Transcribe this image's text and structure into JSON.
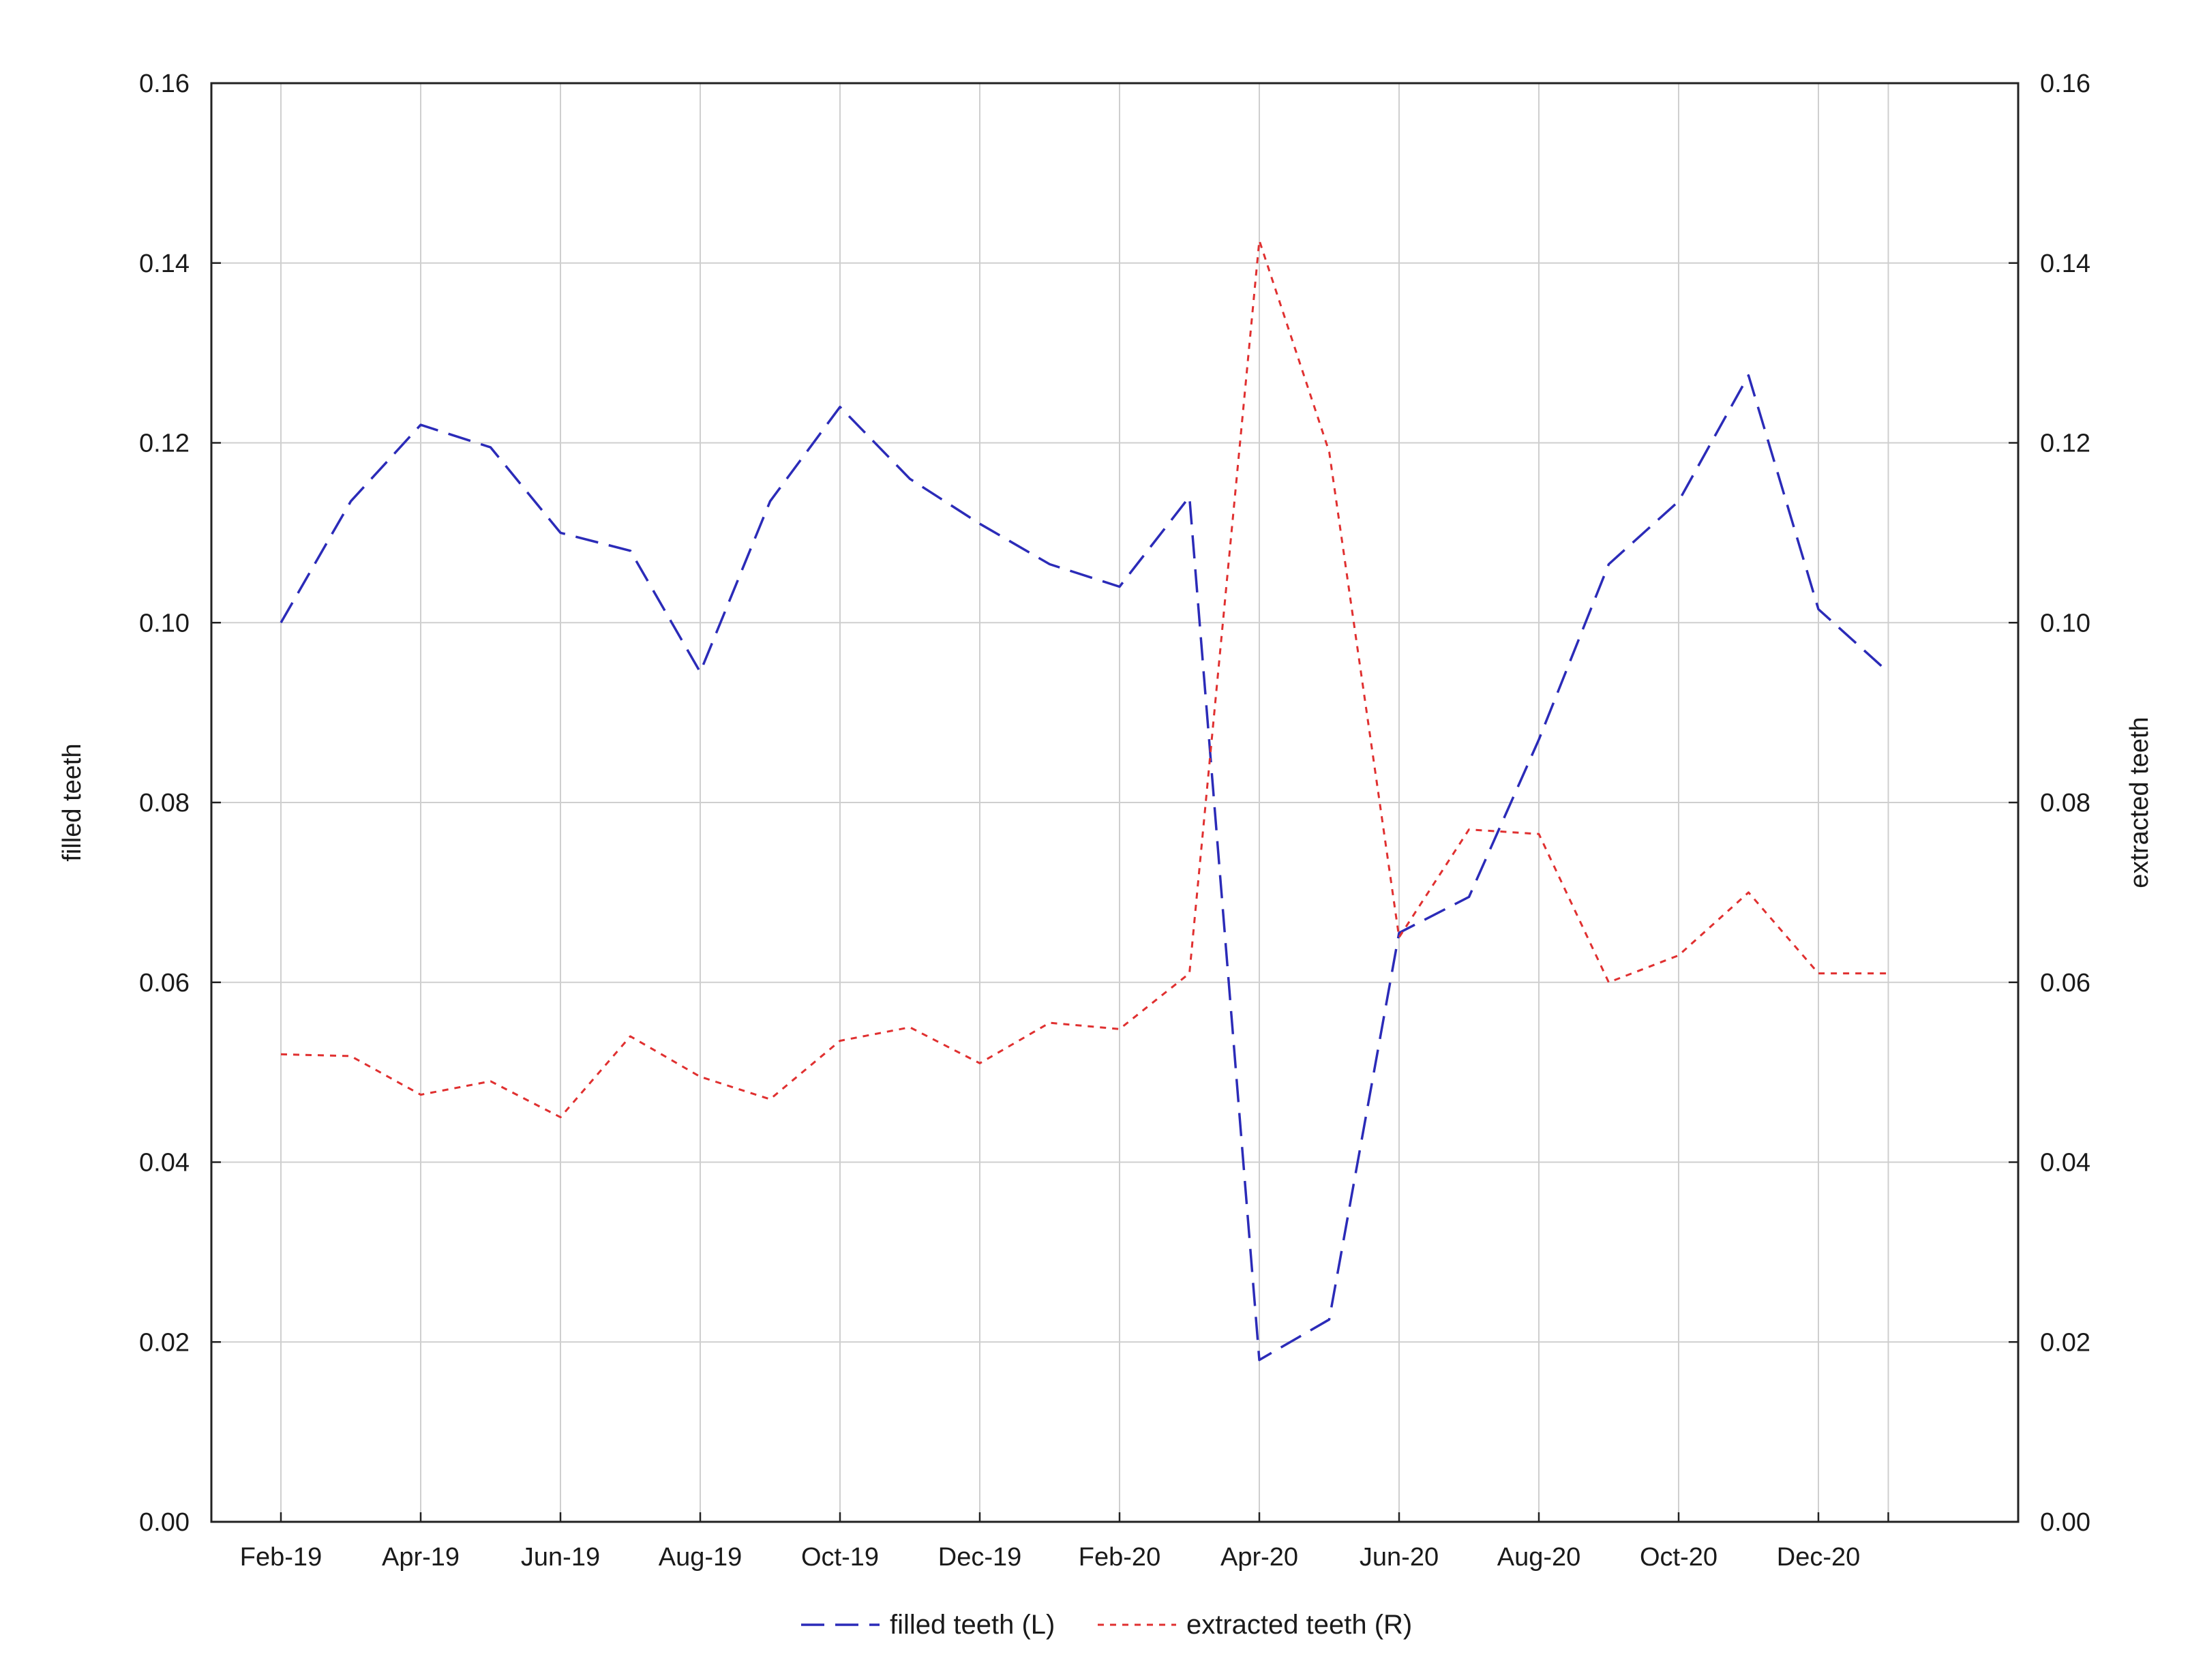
{
  "chart_data": {
    "type": "line",
    "title": "",
    "xlabel": "",
    "y_left_label": "filled teeth",
    "y_right_label": "extracted teeth",
    "ylim_left": [
      0,
      0.16
    ],
    "ylim_right": [
      0,
      0.16
    ],
    "y_ticks_left": [
      "0.00",
      "0.02",
      "0.04",
      "0.06",
      "0.08",
      "0.10",
      "0.12",
      "0.14",
      "0.16"
    ],
    "y_ticks_right": [
      "0.00",
      "0.02",
      "0.04",
      "0.06",
      "0.08",
      "0.10",
      "0.12",
      "0.14",
      "0.16"
    ],
    "x": [
      "Feb-19",
      "Mar-19",
      "Apr-19",
      "May-19",
      "Jun-19",
      "Jul-19",
      "Aug-19",
      "Sep-19",
      "Oct-19",
      "Nov-19",
      "Dec-19",
      "Jan-20",
      "Feb-20",
      "Mar-20",
      "Apr-20",
      "May-20",
      "Jun-20",
      "Jul-20",
      "Aug-20",
      "Sep-20",
      "Oct-20",
      "Nov-20",
      "Dec-20",
      "Jan-21"
    ],
    "x_tick_labels": [
      "Feb-19",
      "Apr-19",
      "Jun-19",
      "Aug-19",
      "Oct-19",
      "Dec-19",
      "Feb-20",
      "Apr-20",
      "Jun-20",
      "Aug-20",
      "Oct-20",
      "Dec-20"
    ],
    "grid": true,
    "legend_position": "bottom-center",
    "series": [
      {
        "name": "filled teeth (L)",
        "axis": "left",
        "color": "#2b2bb8",
        "line_style": "dashed",
        "values": [
          0.1,
          0.1135,
          0.122,
          0.1195,
          0.11,
          0.108,
          0.0945,
          0.1135,
          0.124,
          0.116,
          0.111,
          0.1065,
          0.104,
          0.114,
          0.018,
          0.0225,
          0.0655,
          0.0695,
          0.087,
          0.1065,
          0.1135,
          0.1275,
          0.1015,
          0.0945
        ]
      },
      {
        "name": "extracted teeth (R)",
        "axis": "right",
        "color": "#e03030",
        "line_style": "dotted",
        "values": [
          0.052,
          0.0518,
          0.0475,
          0.049,
          0.045,
          0.054,
          0.0495,
          0.047,
          0.0535,
          0.055,
          0.051,
          0.0555,
          0.0548,
          0.061,
          0.1425,
          0.119,
          0.065,
          0.077,
          0.0765,
          0.06,
          0.063,
          0.07,
          0.061,
          0.061
        ]
      }
    ]
  }
}
